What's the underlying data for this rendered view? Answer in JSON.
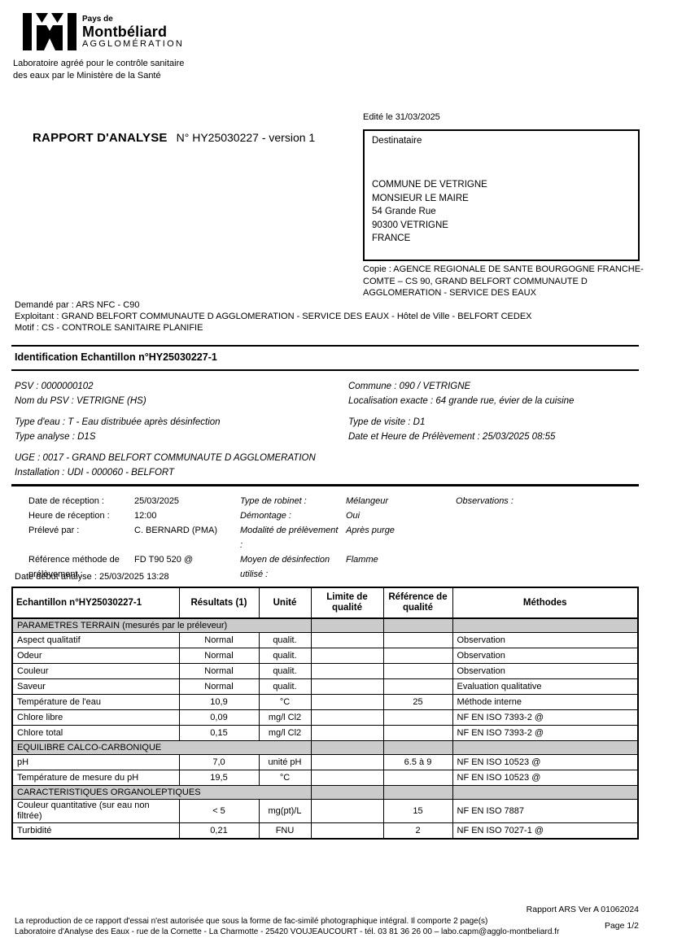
{
  "colors": {
    "text": "#000000",
    "border": "#000000",
    "section_row_bg": "#cbcbcb"
  },
  "logo": {
    "top": "Pays de",
    "name": "Montbéliard",
    "sub": "AGGLOMÉRATION",
    "accreditation_line1": "Laboratoire agréé pour le contrôle sanitaire",
    "accreditation_line2": "des eaux par le Ministère de la Santé"
  },
  "header": {
    "edited": "Edité le 31/03/2025",
    "report_title": "RAPPORT D'ANALYSE",
    "report_number": "N° HY25030227 - version 1"
  },
  "destinataire": {
    "label": "Destinataire",
    "address_lines": [
      "COMMUNE DE VETRIGNE",
      "MONSIEUR LE MAIRE",
      "54 Grande Rue",
      "90300  VETRIGNE",
      "FRANCE"
    ]
  },
  "copie": "Copie : AGENCE REGIONALE DE SANTE BOURGOGNE FRANCHE-COMTE – CS 90, GRAND BELFORT COMMUNAUTE D AGGLOMERATION - SERVICE DES EAUX",
  "request_lines": [
    "Demandé par : ARS NFC - C90",
    "Exploitant : GRAND BELFORT COMMUNAUTE D AGGLOMERATION - SERVICE DES EAUX - Hôtel de Ville - BELFORT CEDEX",
    "Motif : CS - CONTROLE SANITAIRE PLANIFIE"
  ],
  "identification": {
    "title": "Identification Echantillon n°HY25030227-1",
    "left_lines": [
      "PSV : 0000000102",
      "Nom du PSV : VETRIGNE (HS)",
      "",
      "Type d'eau : T - Eau distribuée après désinfection",
      "Type analyse : D1S",
      "",
      "UGE : 0017 - GRAND BELFORT COMMUNAUTE D AGGLOMERATION",
      "Installation : UDI - 000060 - BELFORT"
    ],
    "right_lines": [
      "Commune : 090 / VETRIGNE",
      "Localisation exacte : 64 grande rue, évier de la cuisine",
      "",
      "Type de visite : D1",
      "Date et Heure de Prélèvement : 25/03/2025 08:55"
    ]
  },
  "reception": {
    "rows": [
      [
        "Date de réception :",
        "25/03/2025",
        "Type de robinet :",
        "Mélangeur",
        "Observations :"
      ],
      [
        "Heure de réception :",
        "12:00",
        "Démontage :",
        "Oui",
        ""
      ],
      [
        "Prélevé par :",
        "C. BERNARD (PMA)",
        "Modalité de prélèvement :",
        "Après purge",
        ""
      ],
      [
        "Référence méthode de prélèvement :",
        "FD T90 520 @",
        "Moyen de désinfection utilisé :",
        "Flamme",
        ""
      ]
    ]
  },
  "analysis_start": "Date début analyse : 25/03/2025 13:28",
  "results_table": {
    "headers": [
      "Echantillon n°HY25030227-1",
      "Résultats (1)",
      "Unité",
      "Limite de qualité",
      "Référence de qualité",
      "Méthodes"
    ],
    "rows": [
      {
        "section": "PARAMETRES TERRAIN (mesurés par le préleveur)"
      },
      {
        "param": "Aspect qualitatif",
        "result": "Normal",
        "unit": "qualit.",
        "limit": "",
        "reference": "",
        "method": "Observation"
      },
      {
        "param": "Odeur",
        "result": "Normal",
        "unit": "qualit.",
        "limit": "",
        "reference": "",
        "method": "Observation"
      },
      {
        "param": "Couleur",
        "result": "Normal",
        "unit": "qualit.",
        "limit": "",
        "reference": "",
        "method": "Observation"
      },
      {
        "param": "Saveur",
        "result": "Normal",
        "unit": "qualit.",
        "limit": "",
        "reference": "",
        "method": "Evaluation qualitative"
      },
      {
        "param": "Température de l'eau",
        "result": "10,9",
        "unit": "°C",
        "limit": "",
        "reference": "25",
        "method": "Méthode interne"
      },
      {
        "param": "Chlore libre",
        "result": "0,09",
        "unit": "mg/l Cl2",
        "limit": "",
        "reference": "",
        "method": "NF EN ISO 7393-2 @"
      },
      {
        "param": "Chlore total",
        "result": "0,15",
        "unit": "mg/l Cl2",
        "limit": "",
        "reference": "",
        "method": "NF EN ISO 7393-2 @"
      },
      {
        "section": "EQUILIBRE CALCO-CARBONIQUE"
      },
      {
        "param": "pH",
        "result": "7,0",
        "unit": "unité pH",
        "limit": "",
        "reference": "6.5 à 9",
        "method": "NF EN ISO 10523 @"
      },
      {
        "param": "Température de mesure du pH",
        "result": "19,5",
        "unit": "°C",
        "limit": "",
        "reference": "",
        "method": "NF EN ISO 10523 @"
      },
      {
        "section": "CARACTERISTIQUES ORGANOLEPTIQUES"
      },
      {
        "param": "Couleur quantitative (sur eau non filtrée)",
        "result": "< 5",
        "unit": "mg(pt)/L",
        "limit": "",
        "reference": "15",
        "method": "NF EN ISO 7887"
      },
      {
        "param": "Turbidité",
        "result": "0,21",
        "unit": "FNU",
        "limit": "",
        "reference": "2",
        "method": "NF EN ISO 7027-1 @"
      }
    ]
  },
  "footer": {
    "version": "Rapport ARS Ver A 01062024",
    "line1": "La reproduction de ce rapport d'essai n'est autorisée que sous la forme de fac-similé photographique intégral. Il comporte 2 page(s)",
    "line2": "Laboratoire d'Analyse des Eaux - rue de la Cornette - La Charmotte - 25420 VOUJEAUCOURT - tél. 03 81 36 26 00 – labo.capm@agglo-montbeliard.fr",
    "page": "Page 1/2"
  }
}
